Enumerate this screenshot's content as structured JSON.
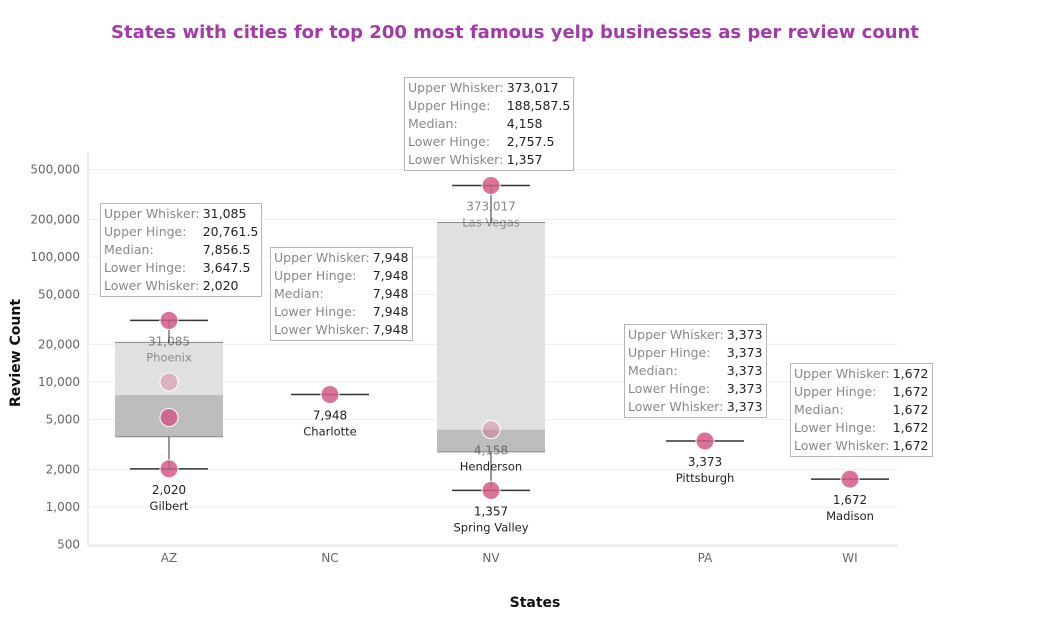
{
  "chart_data": {
    "type": "boxplot",
    "title": "States with cities for top 200 most famous yelp businesses as per review count",
    "xlabel": "States",
    "ylabel": "Review Count",
    "yscale": "log",
    "ylim": [
      450,
      700000
    ],
    "yticks": [
      500,
      1000,
      2000,
      5000,
      10000,
      20000,
      50000,
      100000,
      200000,
      500000
    ],
    "ytick_labels": [
      "500",
      "1,000",
      "2,000",
      "5,000",
      "10,000",
      "20,000",
      "50,000",
      "100,000",
      "200,000",
      "500,000"
    ],
    "categories": [
      "AZ",
      "NC",
      "NV",
      "PA",
      "WI"
    ],
    "tooltip_keys": [
      "Upper Whisker:",
      "Upper Hinge:",
      "Median:",
      "Lower Hinge:",
      "Lower Whisker:"
    ],
    "boxes": [
      {
        "state": "AZ",
        "upper_whisker": 31085,
        "upper_hinge": 20761.5,
        "median": 7856.5,
        "lower_hinge": 3647.5,
        "lower_whisker": 2020,
        "tooltip": [
          "31,085",
          "20,761.5",
          "7,856.5",
          "3,647.5",
          "2,020"
        ]
      },
      {
        "state": "NC",
        "upper_whisker": 7948,
        "upper_hinge": 7948,
        "median": 7948,
        "lower_hinge": 7948,
        "lower_whisker": 7948,
        "tooltip": [
          "7,948",
          "7,948",
          "7,948",
          "7,948",
          "7,948"
        ]
      },
      {
        "state": "NV",
        "upper_whisker": 373017,
        "upper_hinge": 188587.5,
        "median": 4158,
        "lower_hinge": 2757.5,
        "lower_whisker": 1357,
        "tooltip": [
          "373,017",
          "188,587.5",
          "4,158",
          "2,757.5",
          "1,357"
        ]
      },
      {
        "state": "PA",
        "upper_whisker": 3373,
        "upper_hinge": 3373,
        "median": 3373,
        "lower_hinge": 3373,
        "lower_whisker": 3373,
        "tooltip": [
          "3,373",
          "3,373",
          "3,373",
          "3,373",
          "3,373"
        ]
      },
      {
        "state": "WI",
        "upper_whisker": 1672,
        "upper_hinge": 1672,
        "median": 1672,
        "lower_hinge": 1672,
        "lower_whisker": 1672,
        "tooltip": [
          "1,672",
          "1,672",
          "1,672",
          "1,672",
          "1,672"
        ]
      }
    ],
    "points": [
      {
        "state": "AZ",
        "city": "Phoenix",
        "value": 31085,
        "value_label": "31,085",
        "faded": false
      },
      {
        "state": "AZ",
        "city": "",
        "value": 10000,
        "value_label": "",
        "faded": true
      },
      {
        "state": "AZ",
        "city": "",
        "value": 5200,
        "value_label": "",
        "faded": false
      },
      {
        "state": "AZ",
        "city": "Gilbert",
        "value": 2020,
        "value_label": "2,020",
        "faded": false
      },
      {
        "state": "NC",
        "city": "Charlotte",
        "value": 7948,
        "value_label": "7,948",
        "faded": false
      },
      {
        "state": "NV",
        "city": "Las Vegas",
        "value": 373017,
        "value_label": "373,017",
        "faded": false
      },
      {
        "state": "NV",
        "city": "Henderson",
        "value": 4158,
        "value_label": "4,158",
        "faded": true
      },
      {
        "state": "NV",
        "city": "Spring Valley",
        "value": 1357,
        "value_label": "1,357",
        "faded": false
      },
      {
        "state": "PA",
        "city": "Pittsburgh",
        "value": 3373,
        "value_label": "3,373",
        "faded": false
      },
      {
        "state": "WI",
        "city": "Madison",
        "value": 1672,
        "value_label": "1,672",
        "faded": false
      }
    ],
    "colors": {
      "title": "#a23aa8",
      "point": "#d45a87",
      "box_upper": "#e0e0e0",
      "box_lower": "#bdbdbd",
      "whisker": "#333333",
      "grid": "#eeeeee"
    }
  }
}
